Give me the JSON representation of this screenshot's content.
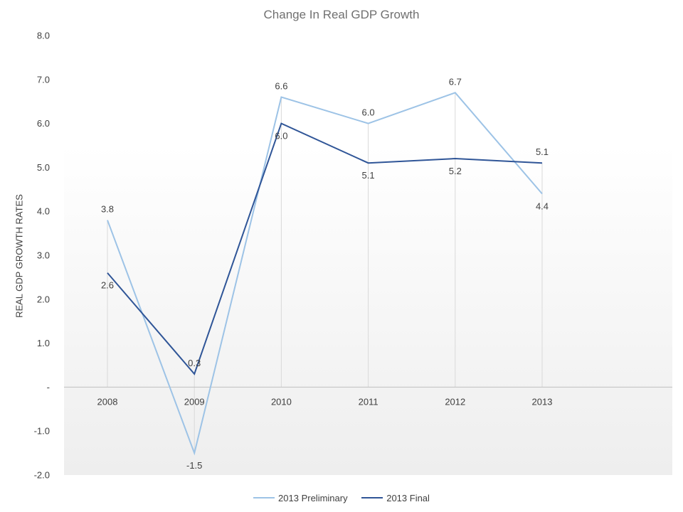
{
  "chart_data": {
    "type": "line",
    "title": "Change In Real GDP Growth",
    "xlabel": "",
    "ylabel": "REAL GDP GROWTH RATES",
    "categories": [
      "2008",
      "2009",
      "2010",
      "2011",
      "2012",
      "2013"
    ],
    "ylim": [
      -2.0,
      8.0
    ],
    "yticks": [
      -2.0,
      -1.0,
      0,
      1.0,
      2.0,
      3.0,
      4.0,
      5.0,
      6.0,
      7.0,
      8.0
    ],
    "ytick_labels": [
      "-2.0",
      "-1.0",
      "-",
      "1.0",
      "2.0",
      "3.0",
      "4.0",
      "5.0",
      "6.0",
      "7.0",
      "8.0"
    ],
    "grid": "vertical drop lines at categories",
    "legend_position": "bottom",
    "series": [
      {
        "name": "2013 Preliminary",
        "color": "#9dc3e6",
        "values": [
          3.8,
          -1.5,
          6.6,
          6.0,
          6.7,
          4.4
        ],
        "labels": [
          "3.8",
          "-1.5",
          "6.6",
          "6.0",
          "6.7",
          "4.4"
        ]
      },
      {
        "name": "2013 Final",
        "color": "#2f5597",
        "values": [
          2.6,
          0.3,
          6.0,
          5.1,
          5.2,
          5.1
        ],
        "labels": [
          "2.6",
          "0.3",
          "6.0",
          "5.1",
          "5.2",
          "5.1"
        ]
      }
    ]
  }
}
